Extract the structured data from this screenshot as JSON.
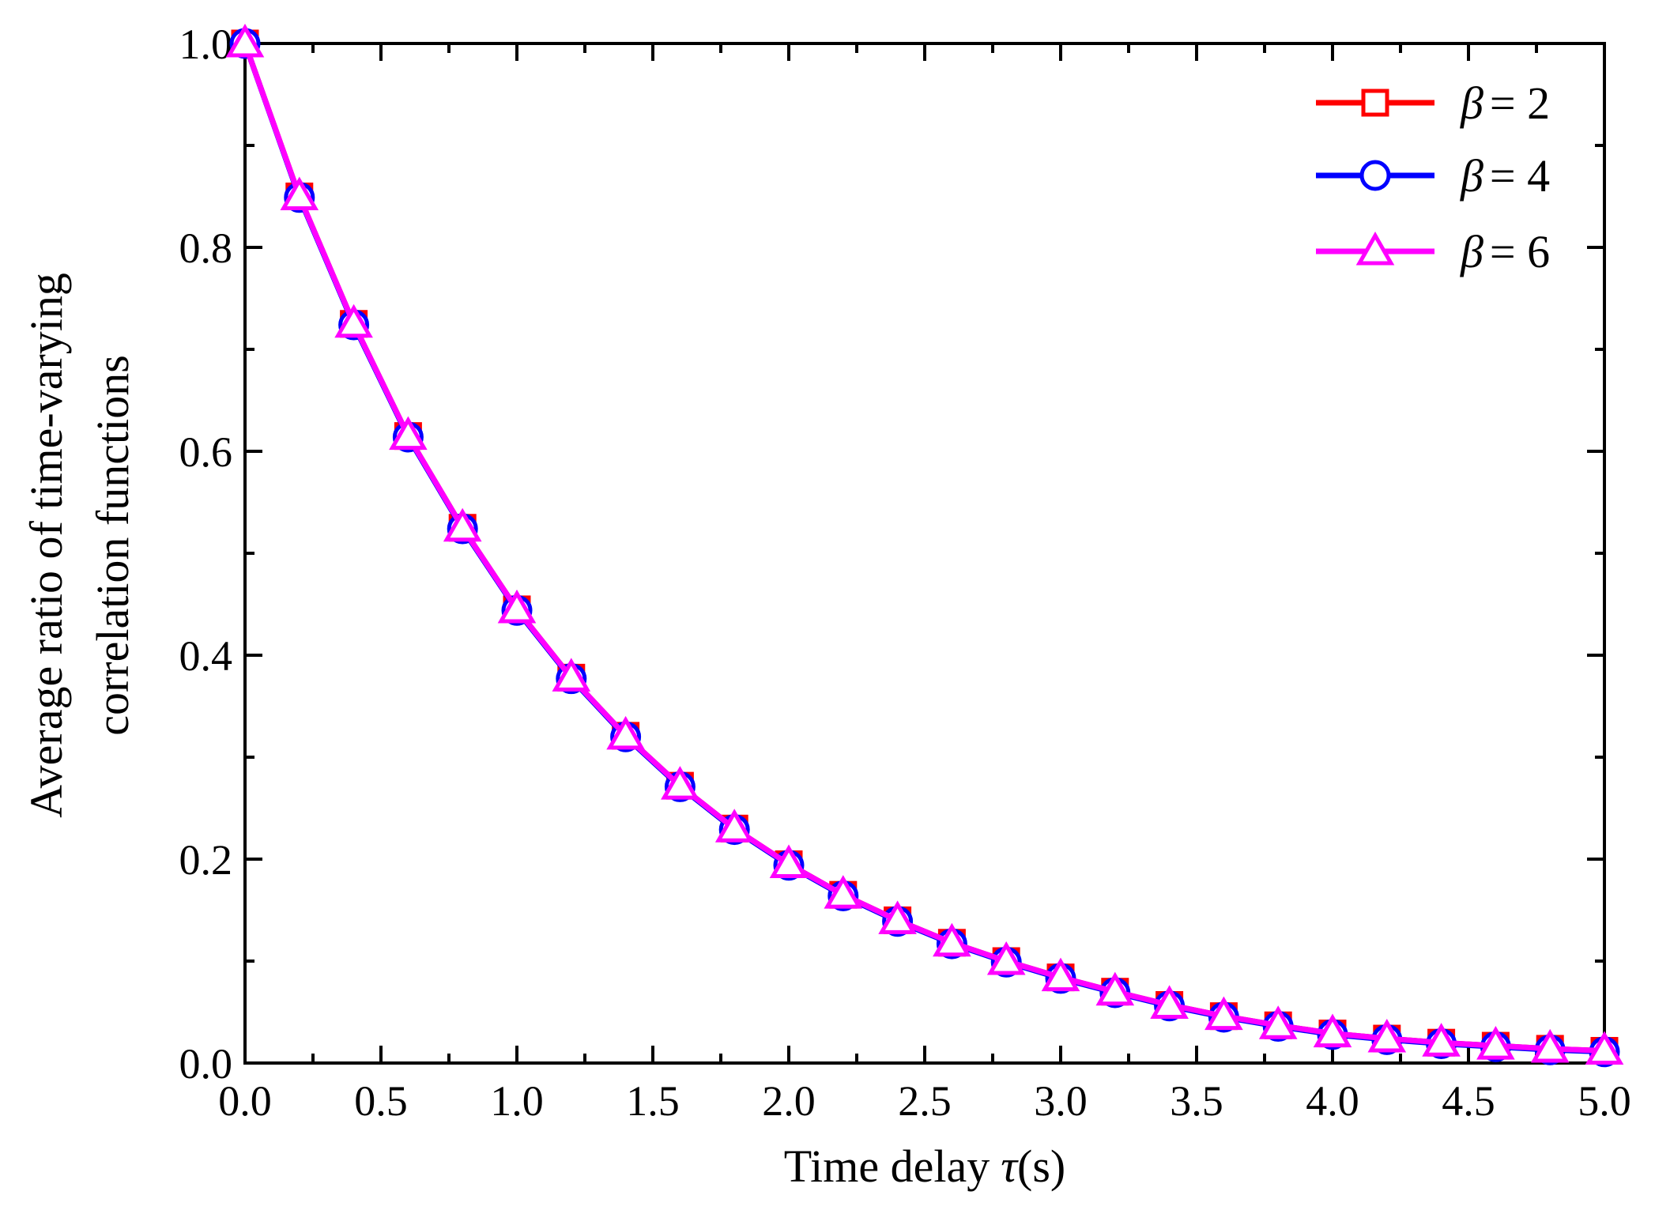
{
  "chart_data": {
    "type": "line",
    "title": "",
    "xlabel": "Time delay",
    "xlabel_symbol": "τ",
    "xlabel_unit": "(s)",
    "ylabel_line1": "Average ratio of time-varying",
    "ylabel_line2": "correlation functions",
    "xlim": [
      0.0,
      5.0
    ],
    "ylim": [
      0.0,
      1.0
    ],
    "xticks": [
      "0.0",
      "0.5",
      "1.0",
      "1.5",
      "2.0",
      "2.5",
      "3.0",
      "3.5",
      "4.0",
      "4.5",
      "5.0"
    ],
    "yticks": [
      "0.0",
      "0.2",
      "0.4",
      "0.6",
      "0.8",
      "1.0"
    ],
    "grid": false,
    "legend_position": "top-right",
    "x": [
      0.0,
      0.2,
      0.4,
      0.6,
      0.8,
      1.0,
      1.2,
      1.4,
      1.6,
      1.8,
      2.0,
      2.2,
      2.4,
      2.6,
      2.8,
      3.0,
      3.2,
      3.4,
      3.6,
      3.8,
      4.0,
      4.2,
      4.4,
      4.6,
      4.8,
      5.0
    ],
    "series": [
      {
        "name": "β = 2",
        "legend_symbol": "β",
        "legend_value": "= 2",
        "color": "#ff0000",
        "marker": "square",
        "values": [
          1.0,
          0.85,
          0.725,
          0.615,
          0.525,
          0.445,
          0.378,
          0.321,
          0.272,
          0.23,
          0.195,
          0.165,
          0.14,
          0.118,
          0.1,
          0.084,
          0.07,
          0.057,
          0.046,
          0.037,
          0.029,
          0.024,
          0.02,
          0.017,
          0.014,
          0.012
        ]
      },
      {
        "name": "β = 4",
        "legend_symbol": "β",
        "legend_value": "= 4",
        "color": "#0000ff",
        "marker": "circle",
        "values": [
          1.0,
          0.849,
          0.724,
          0.614,
          0.524,
          0.444,
          0.377,
          0.32,
          0.271,
          0.229,
          0.194,
          0.164,
          0.139,
          0.117,
          0.099,
          0.083,
          0.069,
          0.056,
          0.045,
          0.036,
          0.028,
          0.023,
          0.019,
          0.016,
          0.013,
          0.011
        ]
      },
      {
        "name": "β = 6",
        "legend_symbol": "β",
        "legend_value": "= 6",
        "color": "#ff00ff",
        "marker": "triangle",
        "values": [
          1.0,
          0.85,
          0.725,
          0.615,
          0.525,
          0.445,
          0.378,
          0.321,
          0.272,
          0.23,
          0.195,
          0.165,
          0.14,
          0.118,
          0.1,
          0.084,
          0.07,
          0.057,
          0.046,
          0.037,
          0.029,
          0.024,
          0.02,
          0.017,
          0.014,
          0.012
        ]
      }
    ]
  }
}
